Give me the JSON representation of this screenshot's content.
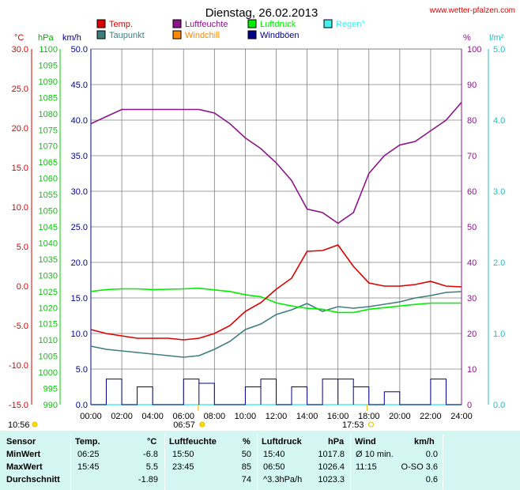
{
  "header": {
    "title": "Dienstag, 26.02.2013",
    "source_url": "www.wetter-pfalzen.com"
  },
  "legend": [
    {
      "label": "Temp.",
      "color": "#dd0000"
    },
    {
      "label": "Luftfeuchte",
      "color": "#8a158a"
    },
    {
      "label": "Luftdruck",
      "color": "#00ee00"
    },
    {
      "label": "Regen°",
      "color": "#44eeee"
    },
    {
      "label": "Taupunkt",
      "color": "#3f7d7d"
    },
    {
      "label": "Windchill",
      "color": "#ff8800"
    },
    {
      "label": "Windböen",
      "color": "#000088"
    }
  ],
  "axes": {
    "temp_unit": "°C",
    "pressure_unit": "hPa",
    "wind_unit": "km/h",
    "humidity_unit": "%",
    "rain_unit": "l/m²",
    "temp_ticks": [
      "30.0",
      "25.0",
      "20.0",
      "15.0",
      "10.0",
      "5.0",
      "0.0",
      "-5.0",
      "-10.0",
      "-15.0"
    ],
    "pressure_ticks": [
      "1100",
      "1095",
      "1090",
      "1085",
      "1080",
      "1075",
      "1070",
      "1065",
      "1060",
      "1055",
      "1050",
      "1045",
      "1040",
      "1035",
      "1030",
      "1025",
      "1020",
      "1015",
      "1010",
      "1005",
      "1000",
      "995",
      "990"
    ],
    "wind_ticks": [
      "50.0",
      "45.0",
      "40.0",
      "35.0",
      "30.0",
      "25.0",
      "20.0",
      "15.0",
      "10.0",
      "5.0",
      "0.0"
    ],
    "humidity_ticks": [
      "100",
      "90",
      "80",
      "70",
      "60",
      "50",
      "40",
      "30",
      "20",
      "10",
      "0"
    ],
    "rain_ticks": [
      "5.0",
      "4.0",
      "3.0",
      "2.0",
      "1.0",
      "0.0"
    ],
    "time_ticks": [
      "00:00",
      "02:00",
      "04:00",
      "06:00",
      "08:00",
      "10:00",
      "12:00",
      "14:00",
      "16:00",
      "18:00",
      "20:00",
      "22:00",
      "24:00"
    ]
  },
  "sun": {
    "sunshine_duration": "10:56",
    "sunrise": "06:57",
    "sunset": "17:53"
  },
  "colors": {
    "grid": "#808080",
    "temp": "#dd0000",
    "dewpoint": "#3f7d7d",
    "humidity": "#8a158a",
    "pressure": "#00ee00",
    "gusts": "#000088",
    "rain": "#44eeee",
    "stats_bg": "#d4f7f4"
  },
  "stats": {
    "headers": {
      "sensor": "Sensor",
      "temp": "Temp.",
      "temp_unit": "°C",
      "hum": "Luftfeuchte",
      "hum_unit": "%",
      "press": "Luftdruck",
      "press_unit": "hPa",
      "wind": "Wind",
      "wind_unit": "km/h"
    },
    "rows": [
      {
        "label": "MinWert",
        "temp_time": "06:25",
        "temp_val": "-6.8",
        "hum_time": "15:50",
        "hum_val": "50",
        "press_time": "15:40",
        "press_val": "1017.8",
        "wind_time": "Ø 10 min.",
        "wind_val": "0.0"
      },
      {
        "label": "MaxWert",
        "temp_time": "15:45",
        "temp_val": "5.5",
        "hum_time": "23:45",
        "hum_val": "85",
        "press_time": "06:50",
        "press_val": "1026.4",
        "wind_time": "11:15",
        "wind_val": "O-SO 3.6"
      },
      {
        "label": "Durchschnitt",
        "temp_time": "",
        "temp_val": "-1.89",
        "hum_time": "",
        "hum_val": "74",
        "press_time": "^3.3hPa/h",
        "press_val": "1023.3",
        "wind_time": "",
        "wind_val": "0.6"
      }
    ]
  },
  "chart_data": {
    "type": "line",
    "title": "Dienstag, 26.02.2013",
    "x": [
      "00:00",
      "01:00",
      "02:00",
      "03:00",
      "04:00",
      "05:00",
      "06:00",
      "07:00",
      "08:00",
      "09:00",
      "10:00",
      "11:00",
      "12:00",
      "13:00",
      "14:00",
      "15:00",
      "16:00",
      "17:00",
      "18:00",
      "19:00",
      "20:00",
      "21:00",
      "22:00",
      "23:00",
      "24:00"
    ],
    "xlabel": "",
    "series": [
      {
        "name": "Temp.",
        "unit": "°C",
        "values": [
          -5.5,
          -6.0,
          -6.3,
          -6.6,
          -6.6,
          -6.6,
          -6.8,
          -6.6,
          -6.0,
          -5.0,
          -3.2,
          -2.1,
          -0.4,
          1.0,
          4.4,
          4.5,
          5.2,
          2.5,
          0.4,
          0.0,
          0.0,
          0.2,
          0.6,
          0.0,
          -0.1
        ]
      },
      {
        "name": "Taupunkt",
        "unit": "°C",
        "values": [
          -7.6,
          -8.0,
          -8.2,
          -8.4,
          -8.6,
          -8.8,
          -9.0,
          -8.8,
          -8.0,
          -7.0,
          -5.5,
          -4.8,
          -3.6,
          -3.0,
          -2.2,
          -3.2,
          -2.6,
          -2.8,
          -2.6,
          -2.3,
          -2.0,
          -1.5,
          -1.2,
          -0.8,
          -0.7
        ]
      },
      {
        "name": "Luftfeuchte",
        "unit": "%",
        "values": [
          79,
          81,
          83,
          83,
          83,
          83,
          83,
          83,
          82,
          79,
          75,
          72,
          68,
          63,
          55,
          54,
          51,
          54,
          65,
          70,
          73,
          74,
          77,
          80,
          85
        ]
      },
      {
        "name": "Luftdruck",
        "unit": "hPa",
        "values": [
          1025.0,
          1025.6,
          1025.8,
          1025.8,
          1025.6,
          1025.7,
          1025.8,
          1026.0,
          1025.5,
          1025.0,
          1024.0,
          1023.4,
          1021.5,
          1020.5,
          1019.8,
          1019.5,
          1018.5,
          1018.5,
          1019.5,
          1020.0,
          1020.5,
          1021.0,
          1021.4,
          1021.4,
          1021.4
        ]
      },
      {
        "name": "Windböen",
        "unit": "km/h",
        "values": [
          0,
          3.6,
          0,
          2.5,
          0,
          0,
          3.6,
          3.0,
          0,
          0,
          2.5,
          3.6,
          0,
          2.5,
          0,
          3.6,
          3.6,
          2.5,
          0,
          1.8,
          0,
          0,
          3.6,
          0,
          0
        ]
      },
      {
        "name": "Regen°",
        "unit": "l/m²",
        "values": [
          0,
          0,
          0,
          0,
          0,
          0,
          0,
          0,
          0,
          0,
          0,
          0,
          0,
          0,
          0,
          0,
          0,
          0,
          0,
          0,
          0,
          0,
          0,
          0,
          0
        ]
      }
    ],
    "axes_ranges": {
      "temp": [
        -15,
        30
      ],
      "pressure": [
        990,
        1100
      ],
      "wind": [
        0,
        50
      ],
      "humidity": [
        0,
        100
      ],
      "rain": [
        0,
        5
      ]
    },
    "grid": true,
    "legend_position": "top"
  }
}
